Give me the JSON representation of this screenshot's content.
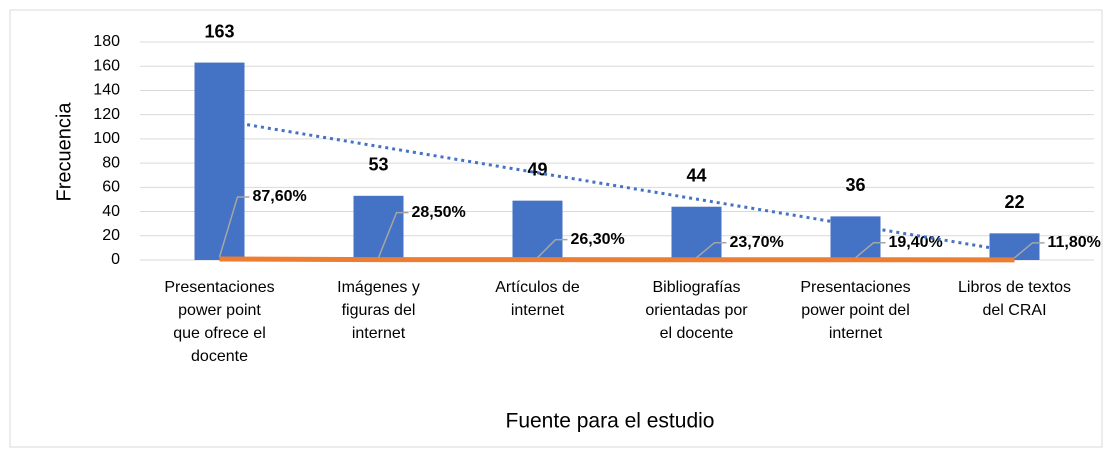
{
  "chart_data": {
    "type": "bar",
    "x_label": "Fuente para el estudio",
    "y_label": "Frecuencia",
    "categories": [
      "Presentaciones\npower point\nque ofrece el\ndocente",
      "Imágenes y\nfiguras del\ninternet",
      "Artículos de\ninternet",
      "Bibliografías\norientadas por\nel docente",
      "Presentaciones\npower point del\ninternet",
      "Libros de textos\ndel CRAI"
    ],
    "series": [
      {
        "type": "bar",
        "color": "#4472c4",
        "values": [
          163,
          53,
          49,
          44,
          36,
          22
        ]
      },
      {
        "type": "line",
        "color": "#ed7d31",
        "values": [
          0.876,
          0.285,
          0.263,
          0.237,
          0.194,
          0.118
        ],
        "value_labels": [
          "87,60%",
          "28,50%",
          "26,30%",
          "23,70%",
          "19,40%",
          "11,80%"
        ]
      }
    ],
    "trendline": {
      "series": 0,
      "kind": "linear",
      "color": "#4472c4"
    },
    "ylim": [
      0,
      180
    ],
    "yticks": [
      0,
      20,
      40,
      60,
      80,
      100,
      120,
      140,
      160,
      180
    ],
    "grid": true
  }
}
